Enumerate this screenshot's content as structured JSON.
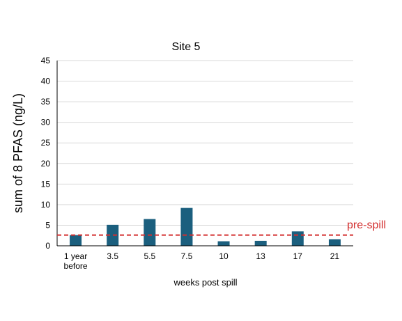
{
  "chart_data": {
    "type": "bar",
    "title": "Site 5",
    "xlabel": "weeks post spill",
    "ylabel": "sum of 8 PFAS (ng/L)",
    "categories": [
      [
        "1 year",
        "before"
      ],
      [
        "3.5"
      ],
      [
        "5.5"
      ],
      [
        "7.5"
      ],
      [
        "10"
      ],
      [
        "13"
      ],
      [
        "17"
      ],
      [
        "21"
      ]
    ],
    "values": [
      2.6,
      5.1,
      6.5,
      9.2,
      1.1,
      1.2,
      3.5,
      1.6
    ],
    "ylim": [
      0,
      45
    ],
    "yticks": [
      0,
      5,
      10,
      15,
      20,
      25,
      30,
      35,
      40,
      45
    ],
    "grid": true,
    "bar_color": "#1b5f7e",
    "reference_line": {
      "value": 2.6,
      "label": "pre-spill",
      "color": "#d32f2f",
      "style": "dashed"
    }
  }
}
